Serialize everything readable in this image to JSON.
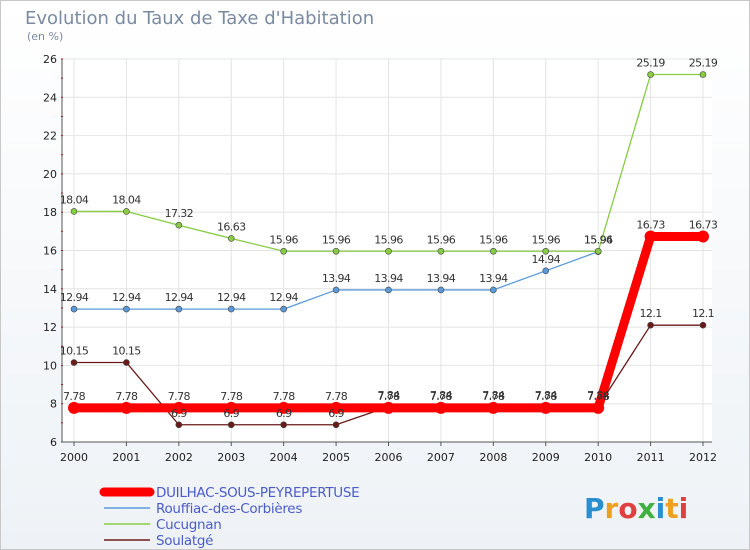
{
  "chart_data": {
    "type": "line",
    "title": "Evolution du Taux de Taxe d'Habitation",
    "subtitle": "(en %)",
    "xlabel": "",
    "ylabel": "",
    "categories": [
      "2000",
      "2001",
      "2002",
      "2003",
      "2004",
      "2005",
      "2006",
      "2007",
      "2008",
      "2009",
      "2010",
      "2011",
      "2012"
    ],
    "ylim": [
      6,
      26
    ],
    "yticks": [
      "6",
      "8",
      "10",
      "12",
      "14",
      "16",
      "18",
      "20",
      "22",
      "24",
      "26"
    ],
    "grid": true,
    "legend_position": "bottom-left",
    "series": [
      {
        "name": "DUILHAC-SOUS-PEYREPERTUSE",
        "color": "#ff0000",
        "values": [
          7.78,
          7.78,
          7.78,
          7.78,
          7.78,
          7.78,
          7.78,
          7.78,
          7.78,
          7.78,
          7.78,
          16.73,
          16.73
        ],
        "labels": [
          "7.78",
          "7.78",
          "7.78",
          "7.78",
          "7.78",
          "7.78",
          "7.78",
          "7.78",
          "7.78",
          "7.78",
          "7.78",
          "16.73",
          "16.73"
        ]
      },
      {
        "name": "Rouffiac-des-Corbières",
        "color": "#5a9ad8",
        "values": [
          12.94,
          12.94,
          12.94,
          12.94,
          12.94,
          13.94,
          13.94,
          13.94,
          13.94,
          14.94,
          15.94,
          null,
          null
        ],
        "labels": [
          "12.94",
          "12.94",
          "12.94",
          "12.94",
          "12.94",
          "13.94",
          "13.94",
          "13.94",
          "13.94",
          "14.94",
          "15.94",
          "",
          ""
        ]
      },
      {
        "name": "Cucugnan",
        "color": "#88cc44",
        "values": [
          18.04,
          18.04,
          17.32,
          16.63,
          15.96,
          15.96,
          15.96,
          15.96,
          15.96,
          15.96,
          15.96,
          25.19,
          25.19
        ],
        "labels": [
          "18.04",
          "18.04",
          "17.32",
          "16.63",
          "15.96",
          "15.96",
          "15.96",
          "15.96",
          "15.96",
          "15.96",
          "15.96",
          "25.19",
          "25.19"
        ]
      },
      {
        "name": "Soulatgé",
        "color": "#6b1a1a",
        "values": [
          10.15,
          10.15,
          6.9,
          6.9,
          6.9,
          6.9,
          7.84,
          7.84,
          7.84,
          7.84,
          7.84,
          12.1,
          12.1
        ],
        "labels": [
          "10.15",
          "10.15",
          "6.9",
          "6.9",
          "6.9",
          "6.9",
          "7.84",
          "7.84",
          "7.84",
          "7.84",
          "7.84",
          "12.1",
          "12.1"
        ]
      }
    ]
  },
  "logo": {
    "text": "Proxiti",
    "colors": [
      "#2a8fd0",
      "#f0a020",
      "#e04040",
      "#40b040"
    ]
  }
}
